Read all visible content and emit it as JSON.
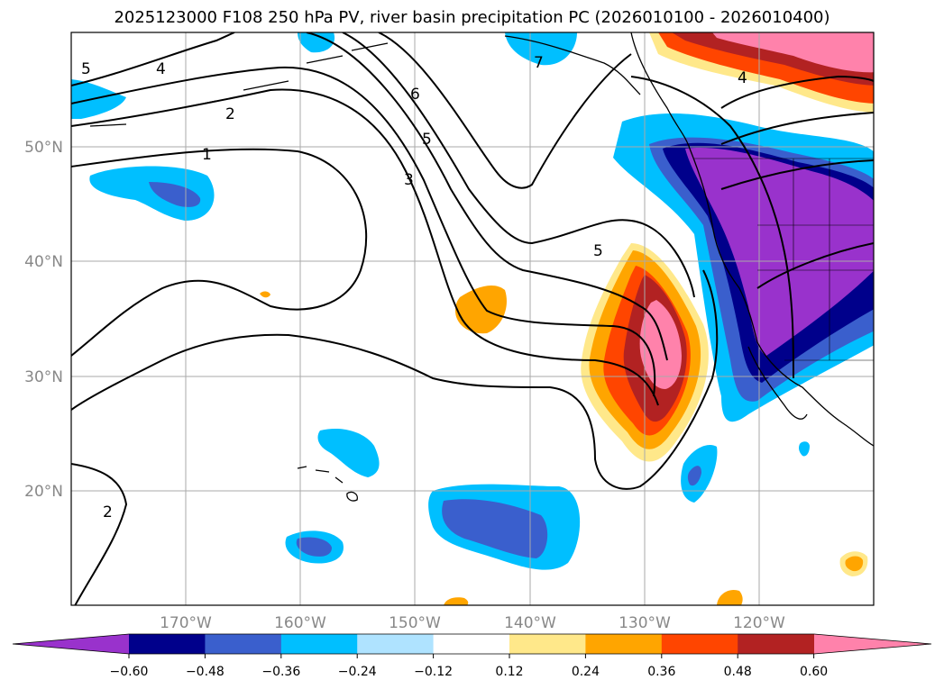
{
  "title": "2025123000 F108 250 hPa PV, river basin precipitation PC (2026010100 - 2026010400)",
  "map": {
    "lon_range": [
      -180,
      -110
    ],
    "lat_range": [
      10,
      60
    ],
    "lon_ticks": [
      {
        "value": -170,
        "label": "170°W"
      },
      {
        "value": -160,
        "label": "160°W"
      },
      {
        "value": -150,
        "label": "150°W"
      },
      {
        "value": -140,
        "label": "140°W"
      },
      {
        "value": -130,
        "label": "130°W"
      },
      {
        "value": -120,
        "label": "120°W"
      }
    ],
    "lat_ticks": [
      {
        "value": 20,
        "label": "20°N"
      },
      {
        "value": 30,
        "label": "30°N"
      },
      {
        "value": 40,
        "label": "40°N"
      },
      {
        "value": 50,
        "label": "50°N"
      }
    ],
    "grid": true
  },
  "colorbar": {
    "extend": "both",
    "boundaries": [
      -0.6,
      -0.48,
      -0.36,
      -0.24,
      -0.12,
      0.12,
      0.24,
      0.36,
      0.48,
      0.6
    ],
    "tick_labels": [
      "−0.60",
      "−0.48",
      "−0.36",
      "−0.24",
      "−0.12",
      "0.12",
      "0.24",
      "0.36",
      "0.48",
      "0.60"
    ],
    "colors": [
      "#9932cc",
      "#00008b",
      "#3a5fcd",
      "#00bfff",
      "#afe3ff",
      "#ffffff",
      "#ffe88a",
      "#ffa500",
      "#ff4500",
      "#b22222",
      "#ff82ab"
    ]
  },
  "pv_contour_labels": [
    "5",
    "4",
    "2",
    "1",
    "6",
    "5",
    "3",
    "5",
    "7",
    "4",
    "2"
  ],
  "precip_anomalies": [
    {
      "name": "northwest-us-negative",
      "lon": -118,
      "lat": 42,
      "level": -0.6
    },
    {
      "name": "subtropical-positive",
      "lon": -130,
      "lat": 34,
      "level": 0.6
    },
    {
      "name": "gulf-of-alaska-positive",
      "lon": -120,
      "lat": 58,
      "level": 0.6
    },
    {
      "name": "hawaii-negative",
      "lon": -143,
      "lat": 17,
      "level": -0.48
    },
    {
      "name": "dateline-negative",
      "lon": -172,
      "lat": 47,
      "level": -0.48
    }
  ]
}
